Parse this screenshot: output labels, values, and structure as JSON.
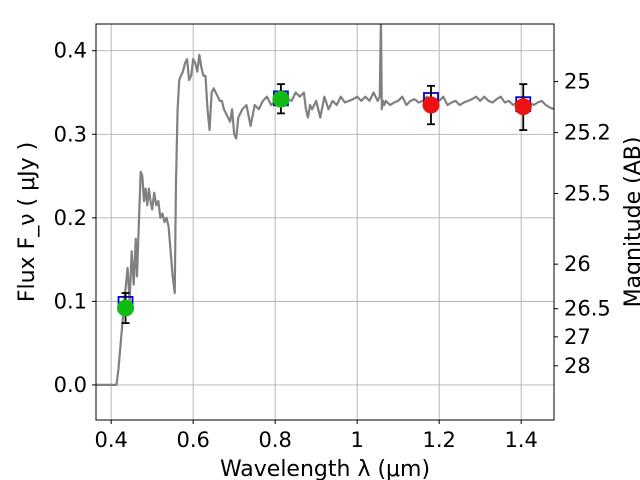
{
  "chart_data": {
    "type": "line",
    "xlabel": "Wavelength  λ (μm)",
    "ylabel": "Flux  F_ν  ( μJy )",
    "ylabel_right": "Magnitude (AB)",
    "xlim": [
      0.363,
      1.48
    ],
    "ylim": [
      -0.042,
      0.432
    ],
    "grid": true,
    "x_ticks": [
      {
        "value": 0.4,
        "label": "0.4"
      },
      {
        "value": 0.6,
        "label": "0.6"
      },
      {
        "value": 0.8,
        "label": "0.8"
      },
      {
        "value": 1.0,
        "label": "1"
      },
      {
        "value": 1.2,
        "label": "1.2"
      },
      {
        "value": 1.4,
        "label": "1.4"
      }
    ],
    "y_ticks": [
      {
        "value": 0.0,
        "label": "0.0"
      },
      {
        "value": 0.1,
        "label": "0.1"
      },
      {
        "value": 0.2,
        "label": "0.2"
      },
      {
        "value": 0.3,
        "label": "0.3"
      },
      {
        "value": 0.4,
        "label": "0.4"
      }
    ],
    "mag_ticks": [
      {
        "mag": 25,
        "label": "25"
      },
      {
        "mag": 25.2,
        "label": "25.2"
      },
      {
        "mag": 25.5,
        "label": "25.5"
      },
      {
        "mag": 26,
        "label": "26"
      },
      {
        "mag": 26.5,
        "label": "26.5"
      },
      {
        "mag": 27,
        "label": "27"
      },
      {
        "mag": 28,
        "label": "28"
      }
    ],
    "series": [
      {
        "style": "model-spectrum",
        "color": "#808080",
        "x": [
          0.363,
          0.413,
          0.418,
          0.425,
          0.432,
          0.44,
          0.445,
          0.45,
          0.455,
          0.46,
          0.463,
          0.468,
          0.472,
          0.476,
          0.48,
          0.484,
          0.488,
          0.492,
          0.496,
          0.5,
          0.505,
          0.51,
          0.515,
          0.52,
          0.525,
          0.53,
          0.535,
          0.54,
          0.545,
          0.55,
          0.555,
          0.558,
          0.562,
          0.566,
          0.57,
          0.575,
          0.58,
          0.585,
          0.59,
          0.595,
          0.6,
          0.605,
          0.61,
          0.615,
          0.62,
          0.625,
          0.63,
          0.635,
          0.64,
          0.645,
          0.65,
          0.655,
          0.66,
          0.665,
          0.67,
          0.675,
          0.68,
          0.685,
          0.69,
          0.695,
          0.7,
          0.705,
          0.71,
          0.715,
          0.72,
          0.73,
          0.74,
          0.75,
          0.76,
          0.77,
          0.78,
          0.79,
          0.8,
          0.81,
          0.82,
          0.83,
          0.84,
          0.85,
          0.86,
          0.87,
          0.875,
          0.88,
          0.885,
          0.89,
          0.9,
          0.91,
          0.92,
          0.93,
          0.94,
          0.95,
          0.96,
          0.97,
          0.98,
          0.99,
          1.0,
          1.01,
          1.02,
          1.03,
          1.04,
          1.05,
          1.055,
          1.058,
          1.06,
          1.063,
          1.066,
          1.07,
          1.08,
          1.09,
          1.1,
          1.11,
          1.12,
          1.13,
          1.14,
          1.15,
          1.16,
          1.17,
          1.18,
          1.19,
          1.2,
          1.21,
          1.22,
          1.23,
          1.24,
          1.25,
          1.26,
          1.27,
          1.28,
          1.29,
          1.3,
          1.31,
          1.32,
          1.33,
          1.34,
          1.35,
          1.36,
          1.37,
          1.38,
          1.39,
          1.4,
          1.41,
          1.42,
          1.43,
          1.44,
          1.45,
          1.46,
          1.47,
          1.48
        ],
        "y": [
          0.0,
          0.0,
          0.02,
          0.06,
          0.1,
          0.14,
          0.1,
          0.16,
          0.12,
          0.175,
          0.13,
          0.2,
          0.255,
          0.25,
          0.22,
          0.235,
          0.215,
          0.235,
          0.22,
          0.21,
          0.23,
          0.215,
          0.22,
          0.2,
          0.205,
          0.195,
          0.2,
          0.19,
          0.16,
          0.13,
          0.11,
          0.24,
          0.33,
          0.365,
          0.37,
          0.375,
          0.385,
          0.39,
          0.365,
          0.37,
          0.39,
          0.385,
          0.375,
          0.395,
          0.38,
          0.37,
          0.37,
          0.33,
          0.305,
          0.35,
          0.355,
          0.35,
          0.345,
          0.34,
          0.34,
          0.33,
          0.325,
          0.32,
          0.315,
          0.33,
          0.3,
          0.295,
          0.32,
          0.325,
          0.33,
          0.335,
          0.31,
          0.335,
          0.33,
          0.34,
          0.345,
          0.335,
          0.34,
          0.34,
          0.338,
          0.342,
          0.34,
          0.35,
          0.345,
          0.35,
          0.33,
          0.32,
          0.335,
          0.33,
          0.34,
          0.32,
          0.345,
          0.33,
          0.34,
          0.335,
          0.345,
          0.338,
          0.34,
          0.342,
          0.345,
          0.34,
          0.345,
          0.34,
          0.35,
          0.34,
          0.345,
          0.44,
          0.33,
          0.34,
          0.335,
          0.34,
          0.335,
          0.338,
          0.34,
          0.345,
          0.335,
          0.34,
          0.342,
          0.338,
          0.34,
          0.345,
          0.34,
          0.342,
          0.34,
          0.345,
          0.335,
          0.338,
          0.34,
          0.335,
          0.338,
          0.34,
          0.342,
          0.345,
          0.34,
          0.345,
          0.34,
          0.338,
          0.342,
          0.345,
          0.338,
          0.34,
          0.335,
          0.338,
          0.338,
          0.34,
          0.338,
          0.335,
          0.338,
          0.34,
          0.335,
          0.332,
          0.33
        ]
      },
      {
        "style": "model-band-flux",
        "marker": "square",
        "color": "#0000cc",
        "points": [
          {
            "x": 0.435,
            "y": 0.097
          },
          {
            "x": 0.814,
            "y": 0.343
          },
          {
            "x": 1.18,
            "y": 0.341
          },
          {
            "x": 1.405,
            "y": 0.336
          }
        ]
      },
      {
        "style": "observed",
        "marker": "circle",
        "points": [
          {
            "x": 0.435,
            "y": 0.092,
            "err_low": 0.074,
            "err_high": 0.11,
            "color": "#11bb11"
          },
          {
            "x": 0.814,
            "y": 0.342,
            "err_low": 0.325,
            "err_high": 0.36,
            "color": "#11bb11"
          },
          {
            "x": 1.18,
            "y": 0.335,
            "err_low": 0.312,
            "err_high": 0.358,
            "color": "#ee1111"
          },
          {
            "x": 1.405,
            "y": 0.333,
            "err_low": 0.305,
            "err_high": 0.36,
            "color": "#ee1111"
          }
        ]
      }
    ]
  }
}
